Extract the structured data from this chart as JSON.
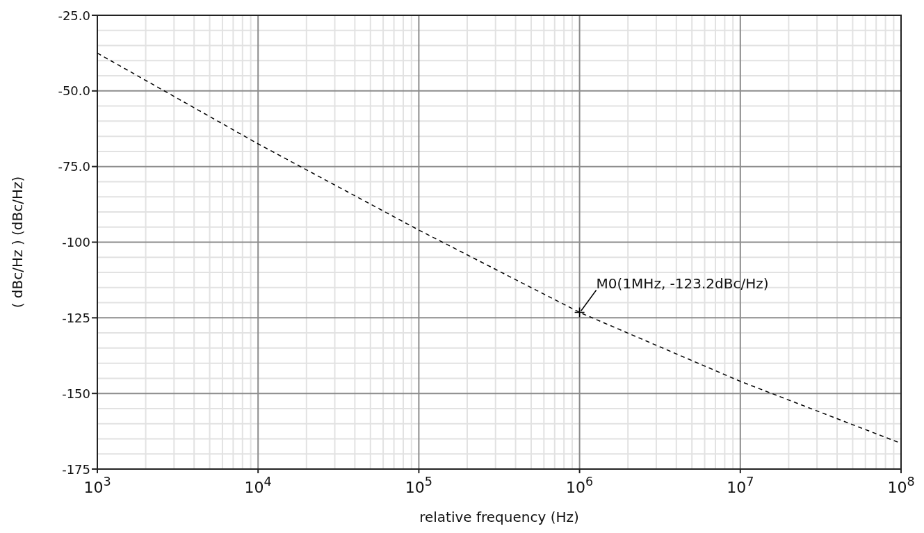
{
  "chart_data": {
    "type": "line",
    "xlabel": "relative frequency (Hz)",
    "ylabel": "( dBc/Hz ) (dBc/Hz)",
    "log": "x",
    "xlim": [
      1000,
      100000000
    ],
    "xticks": [
      {
        "value": 1000,
        "label": "10$^{3}$"
      },
      {
        "value": 10000,
        "label": "10$^{4}$"
      },
      {
        "value": 100000,
        "label": "10$^{5}$"
      },
      {
        "value": 1000000,
        "label": "10$^{6}$"
      },
      {
        "value": 10000000,
        "label": "10$^{7}$"
      },
      {
        "value": 100000000,
        "label": "10$^{8}$"
      }
    ],
    "ylim": [
      -175,
      -25
    ],
    "yticks": [
      {
        "value": -175,
        "label": "-175"
      },
      {
        "value": -150,
        "label": "-150"
      },
      {
        "value": -125,
        "label": "-125"
      },
      {
        "value": -100,
        "label": "-100"
      },
      {
        "value": -75,
        "label": "-75.0"
      },
      {
        "value": -50,
        "label": "-50.0"
      },
      {
        "value": -25,
        "label": "-25.0"
      }
    ],
    "grid": true,
    "line_style": "dashed",
    "x": [
      1000,
      10000,
      100000,
      1000000,
      10000000,
      100000000
    ],
    "series": [
      {
        "color": "#000000",
        "values": [
          -37.5,
          -67.5,
          -96,
          -123.2,
          -146,
          -166.5
        ]
      }
    ],
    "annotations": [
      {
        "text": "M0(1MHz, -123.2dBc/Hz)",
        "x": 1000000,
        "y": -123.2
      }
    ]
  }
}
